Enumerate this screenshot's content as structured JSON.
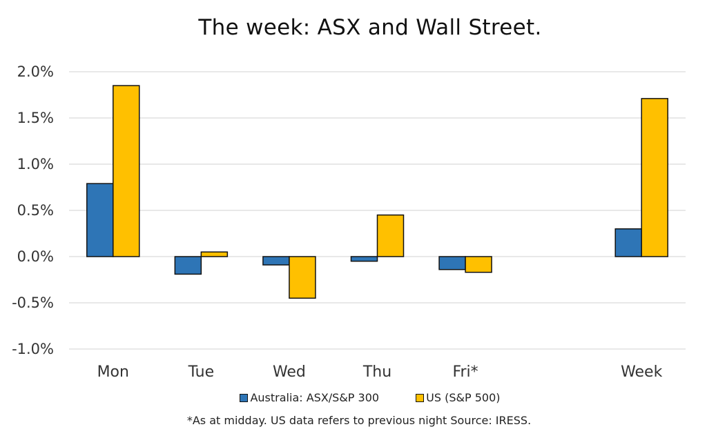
{
  "chart_data": {
    "type": "bar",
    "title": "The week:  ASX and Wall Street.",
    "categories": [
      "Mon",
      "Tue",
      "Wed",
      "Thu",
      "Fri*",
      "",
      "Week"
    ],
    "series": [
      {
        "name": "Australia: ASX/S&P 300",
        "color": "#2E75B6",
        "values": [
          0.79,
          -0.19,
          -0.09,
          -0.05,
          -0.14,
          null,
          0.3
        ]
      },
      {
        "name": "US (S&P 500)",
        "color": "#FFC000",
        "values": [
          1.85,
          0.05,
          -0.45,
          0.45,
          -0.17,
          null,
          1.71
        ]
      }
    ],
    "ylim": [
      -1.0,
      2.0
    ],
    "yticks": [
      "2.0%",
      "1.5%",
      "1.0%",
      "0.5%",
      "0.0%",
      "-0.5%",
      "-1.0%"
    ],
    "ytick_values": [
      2.0,
      1.5,
      1.0,
      0.5,
      0.0,
      -0.5,
      -1.0
    ],
    "grid": true,
    "legend_position": "bottom",
    "footnote": "*As at midday. US data refers to previous night  Source:  IRESS."
  }
}
